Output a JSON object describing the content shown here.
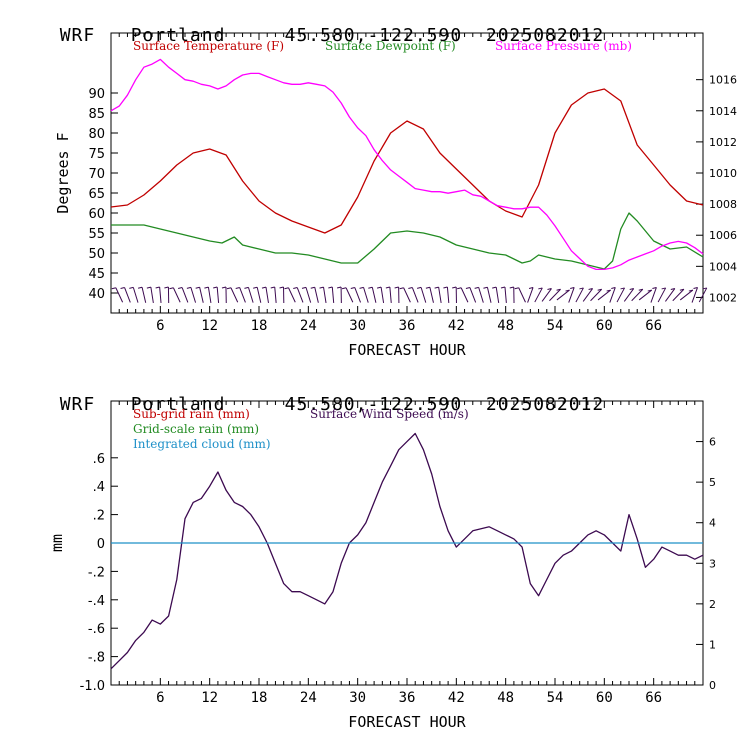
{
  "panels": {
    "top": {
      "model": "WRF",
      "station": "Portland",
      "coords": "45.580,-122.590",
      "init": "2025082012"
    },
    "bottom": {
      "model": "WRF",
      "station": "Portland",
      "coords": "45.580,-122.590",
      "init": "2025082012"
    }
  },
  "chart_data": [
    {
      "type": "line",
      "xlabel": "FORECAST HOUR",
      "ylabel": "Degrees F",
      "xlim": [
        0,
        72
      ],
      "ylim": [
        35,
        105
      ],
      "y2lim": [
        1001,
        1019
      ],
      "xticks": [
        "6",
        "12",
        "18",
        "24",
        "30",
        "36",
        "42",
        "48",
        "54",
        "60",
        "66"
      ],
      "yticks": [
        "40",
        "45",
        "50",
        "55",
        "60",
        "65",
        "70",
        "75",
        "80",
        "85",
        "90"
      ],
      "y2ticks": [
        "1002",
        "1004",
        "1006",
        "1008",
        "1010",
        "1012",
        "1014",
        "1016"
      ],
      "legend": [
        "Surface Temperature (F)",
        "Surface Dewpoint (F)",
        "Surface Pressure (mb)"
      ],
      "colors": {
        "temperature": "#c00000",
        "dewpoint": "#228b22",
        "pressure": "#ff00ff",
        "barbs": "#3c0a50"
      },
      "series": [
        {
          "name": "Surface Temperature (F)",
          "axis": "left",
          "x": [
            0,
            2,
            4,
            6,
            8,
            10,
            12,
            14,
            16,
            18,
            20,
            22,
            24,
            26,
            28,
            30,
            32,
            34,
            36,
            38,
            40,
            42,
            44,
            46,
            48,
            50,
            52,
            54,
            56,
            58,
            60,
            62,
            64,
            66,
            68,
            70,
            72
          ],
          "values": [
            61.5,
            62,
            64.5,
            68,
            72,
            75,
            76,
            74.5,
            68,
            63,
            60,
            58,
            56.5,
            55,
            57,
            64,
            73,
            80,
            83,
            81,
            75,
            71,
            67,
            63,
            60.5,
            59,
            67,
            80,
            87,
            90,
            91,
            88,
            77,
            72,
            67,
            63,
            62
          ]
        },
        {
          "name": "Surface Dewpoint (F)",
          "axis": "left",
          "x": [
            0,
            2,
            4,
            6,
            8,
            10,
            12,
            13.5,
            15,
            16,
            18,
            20,
            22,
            24,
            26,
            28,
            30,
            32,
            34,
            36,
            38,
            40,
            42,
            44,
            46,
            48,
            50,
            51,
            52,
            54,
            56,
            58,
            60,
            61,
            62,
            63,
            64,
            66,
            68,
            70,
            72
          ],
          "values": [
            57,
            57,
            57,
            56,
            55,
            54,
            53,
            52.5,
            54,
            52,
            51,
            50,
            50,
            49.5,
            48.5,
            47.5,
            47.5,
            51,
            55,
            55.5,
            55,
            54,
            52,
            51,
            50,
            49.5,
            47.5,
            48,
            49.5,
            48.5,
            48,
            47,
            46,
            48,
            56,
            60,
            58,
            53,
            51,
            51.5,
            49
          ]
        },
        {
          "name": "Surface Pressure (mb)",
          "axis": "right",
          "x": [
            0,
            1,
            2,
            3,
            4,
            5,
            6,
            7,
            8,
            9,
            10,
            11,
            12,
            13,
            14,
            15,
            16,
            17,
            18,
            19,
            20,
            21,
            22,
            23,
            24,
            25,
            26,
            27,
            28,
            29,
            30,
            31,
            32,
            33,
            34,
            35,
            36,
            37,
            38,
            39,
            40,
            41,
            42,
            43,
            44,
            45,
            46,
            47,
            48,
            49,
            50,
            51,
            52,
            53,
            54,
            55,
            56,
            57,
            58,
            59,
            60,
            61,
            62,
            63,
            64,
            65,
            66,
            67,
            68,
            69,
            70,
            71,
            72
          ],
          "values": [
            1014,
            1014.3,
            1015,
            1016,
            1016.8,
            1017,
            1017.3,
            1016.8,
            1016.4,
            1016,
            1015.9,
            1015.7,
            1015.6,
            1015.4,
            1015.6,
            1016,
            1016.3,
            1016.4,
            1016.4,
            1016.2,
            1016,
            1015.8,
            1015.7,
            1015.7,
            1015.8,
            1015.7,
            1015.6,
            1015.2,
            1014.5,
            1013.6,
            1012.9,
            1012.4,
            1011.5,
            1010.8,
            1010.2,
            1009.8,
            1009.4,
            1009,
            1008.9,
            1008.8,
            1008.8,
            1008.7,
            1008.8,
            1008.9,
            1008.6,
            1008.5,
            1008.2,
            1007.9,
            1007.8,
            1007.7,
            1007.7,
            1007.8,
            1007.8,
            1007.3,
            1006.6,
            1005.8,
            1005,
            1004.5,
            1004,
            1003.8,
            1003.8,
            1003.9,
            1004.1,
            1004.4,
            1004.6,
            1004.8,
            1005,
            1005.3,
            1005.5,
            1005.6,
            1005.5,
            1005.2,
            1004.8
          ]
        }
      ],
      "wind_barbs_hours": [
        1,
        2,
        3,
        4,
        5,
        6,
        7,
        8,
        9,
        10,
        11,
        12,
        13,
        14,
        15,
        16,
        17,
        18,
        19,
        20,
        21,
        22,
        23,
        24,
        25,
        26,
        27,
        28,
        29,
        30,
        31,
        32,
        33,
        34,
        35,
        36,
        37,
        38,
        39,
        40,
        41,
        42,
        43,
        44,
        45,
        46,
        47,
        48,
        49,
        50,
        51,
        52,
        53,
        54,
        55,
        56,
        57,
        58,
        59,
        60,
        61,
        62,
        63,
        64,
        65,
        66,
        67,
        68,
        69,
        70,
        71,
        72
      ]
    },
    {
      "type": "line",
      "xlabel": "FORECAST HOUR",
      "ylabel": "mm",
      "xlim": [
        0,
        72
      ],
      "ylim": [
        -1.0,
        1.0
      ],
      "y2lim": [
        0,
        7
      ],
      "xticks": [
        "6",
        "12",
        "18",
        "24",
        "30",
        "36",
        "42",
        "48",
        "54",
        "60",
        "66"
      ],
      "yticks": [
        "-1.0",
        "-.8",
        "-.6",
        "-.4",
        "-.2",
        "0",
        ".2",
        ".4",
        ".6"
      ],
      "y2ticks": [
        "0",
        "1",
        "2",
        "3",
        "4",
        "5",
        "6"
      ],
      "legend": [
        "Sub-grid rain (mm)",
        "Grid-scale rain (mm)",
        "Integrated cloud (mm)",
        "Surface Wind Speed (m/s)"
      ],
      "colors": {
        "subgrid": "#c00000",
        "gridscale": "#228b22",
        "cloud": "#1e90c8",
        "wind": "#3c0a50"
      },
      "series": [
        {
          "name": "Surface Wind Speed (m/s)",
          "axis": "right",
          "x": [
            0,
            1,
            2,
            3,
            4,
            5,
            6,
            7,
            8,
            9,
            10,
            11,
            12,
            13,
            14,
            15,
            16,
            17,
            18,
            19,
            20,
            21,
            22,
            23,
            24,
            25,
            26,
            27,
            28,
            29,
            30,
            31,
            32,
            33,
            34,
            35,
            36,
            37,
            38,
            39,
            40,
            41,
            42,
            43,
            44,
            45,
            46,
            47,
            48,
            49,
            50,
            51,
            52,
            53,
            54,
            55,
            56,
            57,
            58,
            59,
            60,
            61,
            62,
            63,
            64,
            65,
            66,
            67,
            68,
            69,
            70,
            71,
            72
          ],
          "values": [
            0.4,
            0.6,
            0.8,
            1.1,
            1.3,
            1.6,
            1.5,
            1.7,
            2.6,
            4.1,
            4.5,
            4.6,
            4.9,
            5.25,
            4.8,
            4.5,
            4.4,
            4.2,
            3.9,
            3.5,
            3,
            2.5,
            2.3,
            2.3,
            2.2,
            2.1,
            2,
            2.3,
            3,
            3.5,
            3.7,
            4,
            4.5,
            5,
            5.4,
            5.8,
            6,
            6.2,
            5.8,
            5.2,
            4.4,
            3.8,
            3.4,
            3.6,
            3.8,
            3.85,
            3.9,
            3.8,
            3.7,
            3.6,
            3.4,
            2.5,
            2.2,
            2.6,
            3,
            3.2,
            3.3,
            3.5,
            3.7,
            3.8,
            3.7,
            3.5,
            3.3,
            4.2,
            3.6,
            2.9,
            3.1,
            3.4,
            3.3,
            3.2,
            3.2,
            3.1,
            3.2
          ]
        },
        {
          "name": "Integrated cloud (mm)",
          "axis": "left",
          "x": [
            0,
            72
          ],
          "values": [
            0,
            0
          ]
        }
      ]
    }
  ]
}
